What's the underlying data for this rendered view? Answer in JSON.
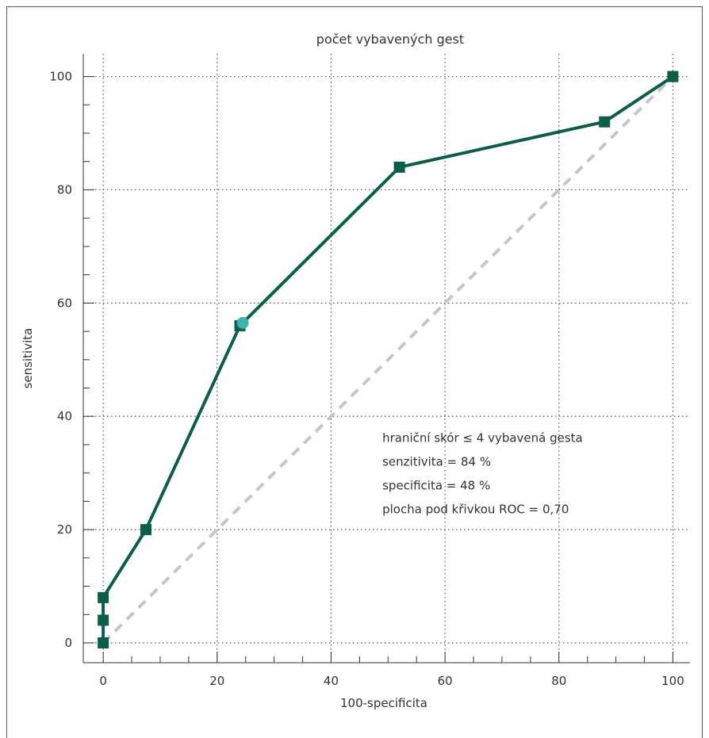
{
  "chart_data": {
    "type": "line",
    "title": "počet vybavených gest",
    "xlabel": "100-specificita",
    "ylabel": "sensitivita",
    "xlim": [
      -3.5,
      103
    ],
    "ylim": [
      -3.5,
      104
    ],
    "xticks": [
      0,
      20,
      40,
      60,
      80,
      100
    ],
    "yticks": [
      0,
      20,
      40,
      60,
      80,
      100
    ],
    "xtick_labels": [
      "0",
      "20",
      "40",
      "60",
      "80",
      "100"
    ],
    "ytick_labels": [
      "0",
      "20",
      "40",
      "60",
      "80",
      "100"
    ],
    "minor_step": 5,
    "grid": true,
    "series": [
      {
        "marker": "square",
        "color": "#0b5e4a",
        "x": [
          0,
          0,
          0,
          7.5,
          24,
          52,
          88,
          100
        ],
        "y": [
          0,
          4,
          8,
          20,
          56,
          84,
          92,
          100
        ]
      }
    ],
    "reference_line": {
      "x": [
        0,
        100
      ],
      "y": [
        0,
        100
      ],
      "color": "#c6c6c6",
      "style": "dashed"
    },
    "highlight_point": {
      "x": 24.5,
      "y": 56.5,
      "color": "#3fb3ad"
    },
    "annotations": [
      "hraniční skór ≤ 4 vybavená gesta",
      "senzitivita = 84 %",
      "specificita = 48 %",
      "plocha pod křivkou ROC = 0,70"
    ],
    "annotation_anchor": {
      "x": 49,
      "y": 35.5
    }
  }
}
